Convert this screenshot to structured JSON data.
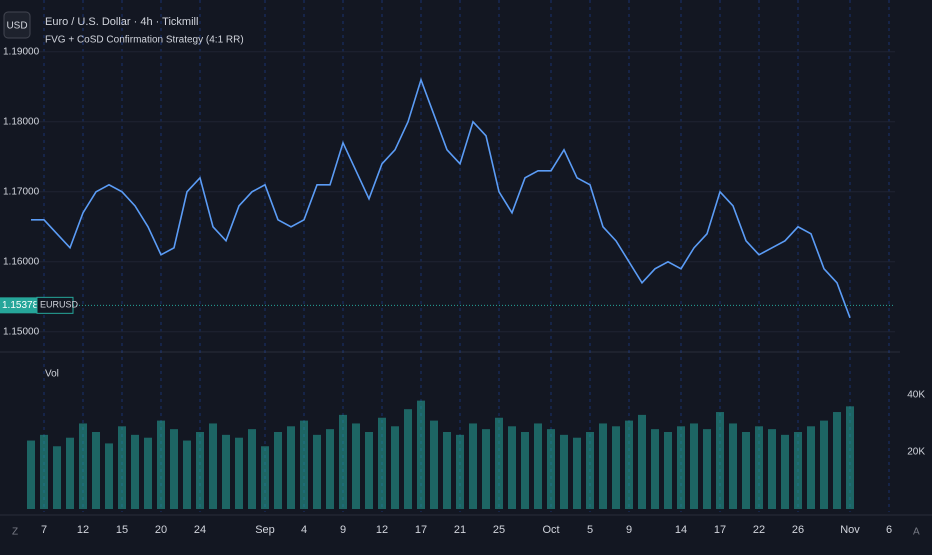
{
  "toolbar": {
    "currency_button": "USD",
    "symbol_tag": "EURUSD",
    "bottom_left": "Z",
    "bottom_right": "A"
  },
  "chart_data": [
    {
      "type": "line",
      "title": "Euro / U.S. Dollar · 4h · Tickmill",
      "subtitle": "FVG + CoSD Confirmation Strategy (4:1 RR)",
      "categories": [
        null,
        "7",
        null,
        null,
        "12",
        null,
        null,
        "15",
        null,
        null,
        "20",
        null,
        null,
        "24",
        null,
        null,
        null,
        null,
        "Sep",
        null,
        null,
        "4",
        null,
        null,
        "9",
        null,
        null,
        "12",
        null,
        null,
        "17",
        null,
        null,
        "21",
        null,
        null,
        "25",
        null,
        null,
        null,
        "Oct",
        null,
        null,
        "5",
        null,
        null,
        "9",
        null,
        null,
        null,
        "14",
        null,
        null,
        "17",
        null,
        null,
        "22",
        null,
        null,
        "26",
        null,
        null,
        null,
        "Nov",
        null,
        null,
        "6",
        null
      ],
      "values": [
        1.166,
        1.166,
        1.164,
        1.162,
        1.167,
        1.17,
        1.171,
        1.17,
        1.168,
        1.165,
        1.161,
        1.162,
        1.17,
        1.172,
        1.165,
        1.163,
        1.168,
        1.17,
        1.171,
        1.166,
        1.165,
        1.166,
        1.171,
        1.171,
        1.177,
        1.173,
        1.169,
        1.174,
        1.176,
        1.18,
        1.186,
        1.181,
        1.176,
        1.174,
        1.18,
        1.178,
        1.17,
        1.167,
        1.172,
        1.173,
        1.173,
        1.176,
        1.172,
        1.171,
        1.165,
        1.163,
        1.16,
        1.157,
        1.159,
        1.16,
        1.159,
        1.162,
        1.164,
        1.17,
        1.168,
        1.163,
        1.161,
        1.162,
        1.163,
        1.165,
        1.164,
        1.159,
        1.157,
        1.152,
        null,
        null,
        null,
        null
      ],
      "color": "#5b9cf6",
      "ylim": [
        1.1474,
        1.1974
      ],
      "yticks": [
        {
          "value": 1.15,
          "label": "1.15000"
        },
        {
          "value": 1.16,
          "label": "1.16000"
        },
        {
          "value": 1.17,
          "label": "1.17000"
        },
        {
          "value": 1.18,
          "label": "1.18000"
        },
        {
          "value": 1.19,
          "label": "1.19000"
        }
      ],
      "last_price": 1.15378,
      "grid": true
    },
    {
      "type": "bar",
      "title": "Vol",
      "values": [
        24000,
        26000,
        22000,
        25000,
        30000,
        27000,
        23000,
        29000,
        26000,
        25000,
        31000,
        28000,
        24000,
        27000,
        30000,
        26000,
        25000,
        28000,
        22000,
        27000,
        29000,
        31000,
        26000,
        28000,
        33000,
        30000,
        27000,
        32000,
        29000,
        35000,
        38000,
        31000,
        27000,
        26000,
        30000,
        28000,
        32000,
        29000,
        27000,
        30000,
        28000,
        26000,
        25000,
        27000,
        30000,
        29000,
        31000,
        33000,
        28000,
        27000,
        29000,
        30000,
        28000,
        34000,
        30000,
        27000,
        29000,
        28000,
        26000,
        27000,
        29000,
        31000,
        34000,
        36000,
        null,
        null,
        null,
        null
      ],
      "color": "#26a69a",
      "ylim": [
        0,
        54000
      ],
      "yticks": [
        {
          "value": 20000,
          "label": "20K"
        },
        {
          "value": 40000,
          "label": "40K"
        }
      ]
    }
  ]
}
